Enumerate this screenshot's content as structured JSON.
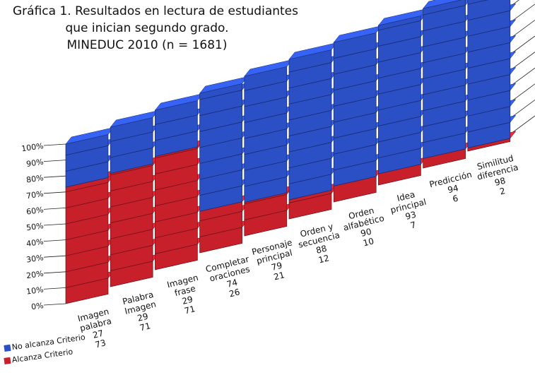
{
  "chart_data": {
    "type": "bar",
    "stacked": true,
    "three_d": true,
    "title_lines": [
      "Gráfica 1. Resultados en lectura  de estudiantes",
      "que inician segundo grado.",
      "MINEDUC 2010  (n = 1681)"
    ],
    "categories": [
      [
        "Imagen",
        "palabra"
      ],
      [
        "Palabra",
        "Imagen"
      ],
      [
        "Imagen",
        "frase"
      ],
      [
        "Completar",
        "oraciones"
      ],
      [
        "Personaje",
        "principal"
      ],
      [
        "Orden y",
        "secuencia"
      ],
      [
        "Orden",
        "alfabético"
      ],
      [
        "Idea",
        "principal"
      ],
      [
        "Predicción"
      ],
      [
        "Similitud",
        "diferencia"
      ]
    ],
    "series": [
      {
        "name": "No alcanza Criterio",
        "color": "#2b4fc4",
        "values": [
          27,
          29,
          29,
          74,
          79,
          88,
          90,
          93,
          94,
          98
        ]
      },
      {
        "name": "Alcanza Criterio",
        "color": "#c8202b",
        "values": [
          73,
          71,
          71,
          26,
          21,
          12,
          10,
          7,
          6,
          2
        ]
      }
    ],
    "y_ticks": [
      "0%",
      "10%",
      "20%",
      "30%",
      "40%",
      "50%",
      "60%",
      "70%",
      "80%",
      "90%",
      "100%"
    ],
    "ylim": [
      0,
      100
    ],
    "grid": true,
    "legend_position": "bottom-left"
  }
}
